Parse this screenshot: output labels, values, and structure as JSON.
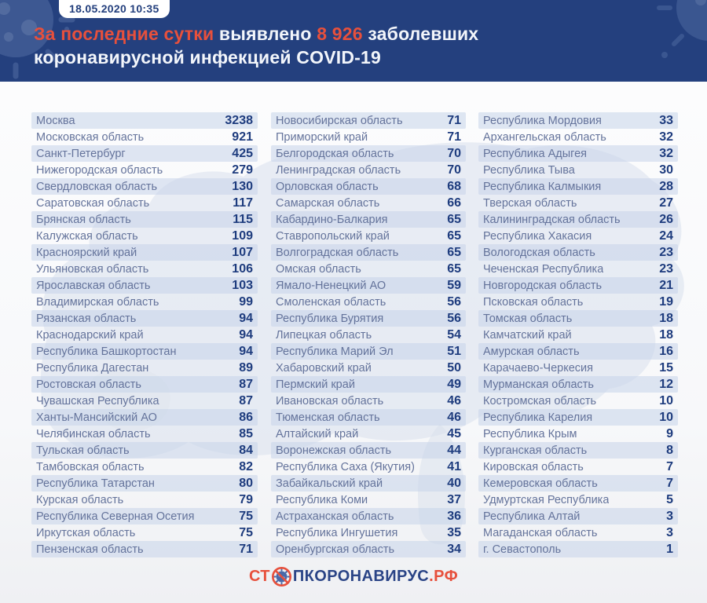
{
  "header": {
    "timestamp": "18.05.2020 10:35",
    "headline": {
      "accent_phrase": "За последние сутки",
      "verb": "выявлено",
      "count": "8 926",
      "suffix": "заболевших",
      "line2": "коронавирусной инфекцией COVID-19"
    },
    "colors": {
      "background": "#24407e",
      "accent_red": "#e7503c",
      "text": "#f3f6fb"
    }
  },
  "chart_data": {
    "type": "table",
    "title": "За последние сутки выявлено 8 926 заболевших коронавирусной инфекцией COVID-19",
    "timestamp": "18.05.2020 10:35",
    "total_new_cases": 8926,
    "layout": {
      "columns_count": 3,
      "rows_per_column": 27,
      "striped": true
    },
    "columns": [
      {
        "rows": [
          {
            "region": "Москва",
            "value": "3238"
          },
          {
            "region": "Московская область",
            "value": "921"
          },
          {
            "region": "Санкт-Петербург",
            "value": "425"
          },
          {
            "region": "Нижегородская область",
            "value": "279"
          },
          {
            "region": "Свердловская область",
            "value": "130"
          },
          {
            "region": "Саратовская область",
            "value": "117"
          },
          {
            "region": "Брянская область",
            "value": "115"
          },
          {
            "region": "Калужская область",
            "value": "109"
          },
          {
            "region": "Красноярский край",
            "value": "107"
          },
          {
            "region": "Ульяновская область",
            "value": "106"
          },
          {
            "region": "Ярославская область",
            "value": "103"
          },
          {
            "region": "Владимирская область",
            "value": "99"
          },
          {
            "region": "Рязанская область",
            "value": "94"
          },
          {
            "region": "Краснодарский край",
            "value": "94"
          },
          {
            "region": "Республика Башкортостан",
            "value": "94"
          },
          {
            "region": "Республика Дагестан",
            "value": "89"
          },
          {
            "region": "Ростовская область",
            "value": "87"
          },
          {
            "region": "Чувашская Республика",
            "value": "87"
          },
          {
            "region": "Ханты-Мансийский АО",
            "value": "86"
          },
          {
            "region": "Челябинская область",
            "value": "85"
          },
          {
            "region": "Тульская область",
            "value": "84"
          },
          {
            "region": "Тамбовская область",
            "value": "82"
          },
          {
            "region": "Республика Татарстан",
            "value": "80"
          },
          {
            "region": "Курская область",
            "value": "79"
          },
          {
            "region": "Республика Северная Осетия",
            "value": "75"
          },
          {
            "region": "Иркутская область",
            "value": "75"
          },
          {
            "region": "Пензенская область",
            "value": "71"
          }
        ]
      },
      {
        "rows": [
          {
            "region": "Новосибирская область",
            "value": "71"
          },
          {
            "region": "Приморский край",
            "value": "71"
          },
          {
            "region": "Белгородская область",
            "value": "70"
          },
          {
            "region": "Ленинградская область",
            "value": "70"
          },
          {
            "region": "Орловская область",
            "value": "68"
          },
          {
            "region": "Самарская область",
            "value": "66"
          },
          {
            "region": "Кабардино-Балкария",
            "value": "65"
          },
          {
            "region": "Ставропольский край",
            "value": "65"
          },
          {
            "region": "Волгоградская область",
            "value": "65"
          },
          {
            "region": "Омская область",
            "value": "65"
          },
          {
            "region": "Ямало-Ненецкий АО",
            "value": "59"
          },
          {
            "region": "Смоленская область",
            "value": "56"
          },
          {
            "region": "Республика Бурятия",
            "value": "56"
          },
          {
            "region": "Липецкая область",
            "value": "54"
          },
          {
            "region": "Республика Марий Эл",
            "value": "51"
          },
          {
            "region": "Хабаровский край",
            "value": "50"
          },
          {
            "region": "Пермский край",
            "value": "49"
          },
          {
            "region": "Ивановская область",
            "value": "46"
          },
          {
            "region": "Тюменская область",
            "value": "46"
          },
          {
            "region": "Алтайский край",
            "value": "45"
          },
          {
            "region": "Воронежская область",
            "value": "44"
          },
          {
            "region": "Республика Саха (Якутия)",
            "value": "41"
          },
          {
            "region": "Забайкальский край",
            "value": "40"
          },
          {
            "region": "Республика Коми",
            "value": "37"
          },
          {
            "region": "Астраханская область",
            "value": "36"
          },
          {
            "region": "Республика Ингушетия",
            "value": "35"
          },
          {
            "region": "Оренбургская область",
            "value": "34"
          }
        ]
      },
      {
        "rows": [
          {
            "region": "Республика Мордовия",
            "value": "33"
          },
          {
            "region": "Архангельская область",
            "value": "32"
          },
          {
            "region": "Республика Адыгея",
            "value": "32"
          },
          {
            "region": "Республика Тыва",
            "value": "30"
          },
          {
            "region": "Республика Калмыкия",
            "value": "28"
          },
          {
            "region": "Тверская область",
            "value": "27"
          },
          {
            "region": "Калининградская область",
            "value": "26"
          },
          {
            "region": "Республика Хакасия",
            "value": "24"
          },
          {
            "region": "Вологодская область",
            "value": "23"
          },
          {
            "region": "Чеченская Республика",
            "value": "23"
          },
          {
            "region": "Новгородская область",
            "value": "21"
          },
          {
            "region": "Псковская область",
            "value": "19"
          },
          {
            "region": "Томская область",
            "value": "18"
          },
          {
            "region": "Камчатский край",
            "value": "18"
          },
          {
            "region": "Амурская область",
            "value": "16"
          },
          {
            "region": "Карачаево-Черкесия",
            "value": "15"
          },
          {
            "region": "Мурманская область",
            "value": "12"
          },
          {
            "region": "Костромская область",
            "value": "10"
          },
          {
            "region": "Республика Карелия",
            "value": "10"
          },
          {
            "region": "Республика Крым",
            "value": "9"
          },
          {
            "region": "Курганская область",
            "value": "8"
          },
          {
            "region": "Кировская область",
            "value": "7"
          },
          {
            "region": "Кемеровская область",
            "value": "7"
          },
          {
            "region": "Удмуртская Республика",
            "value": "5"
          },
          {
            "region": "Республика Алтай",
            "value": "3"
          },
          {
            "region": "Магаданская область",
            "value": "3"
          },
          {
            "region": "г. Севастополь",
            "value": "1"
          }
        ]
      }
    ]
  },
  "footer": {
    "logo_part1": "СТ",
    "logo_part2": "ПКОРОНАВИРУС",
    "logo_part3": ".РФ",
    "colors": {
      "red": "#e7503c",
      "blue": "#2a4486"
    }
  },
  "icons": {
    "no_virus": "no-virus-icon",
    "virus_doodle": "virus-doodle-icon",
    "map": "russia-map-watermark"
  },
  "row_style": {
    "stripe_color": "#dde6f1",
    "name_color": "#64739b",
    "value_color": "#1e3c7e"
  }
}
